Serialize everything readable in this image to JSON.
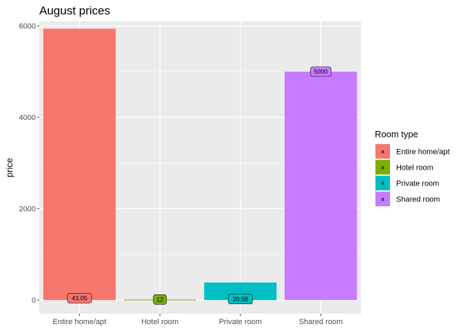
{
  "chart_data": {
    "type": "bar",
    "title": "August prices",
    "xlabel": "",
    "ylabel": "price",
    "categories": [
      "Entire home/apt",
      "Hotel room",
      "Private room",
      "Shared room"
    ],
    "values": [
      5940,
      10,
      385,
      5000
    ],
    "data_labels": [
      "43.05",
      "12",
      "20.58",
      "5000"
    ],
    "label_values": [
      43.05,
      12,
      20.58,
      5000
    ],
    "colors": [
      "#F8766D",
      "#7CAE00",
      "#00BFC4",
      "#C77CFF"
    ],
    "ylim": [
      -300,
      6100
    ],
    "y_ticks": [
      0,
      2000,
      4000,
      6000
    ],
    "y_tick_labels": [
      "0",
      "2000",
      "4000",
      "6000"
    ],
    "grid": true,
    "panel_background": "#EBEBEB",
    "legend": {
      "title": "Room type",
      "position": "right",
      "key_letter": "a",
      "entries": [
        "Entire home/apt",
        "Hotel room",
        "Private room",
        "Shared room"
      ]
    }
  }
}
